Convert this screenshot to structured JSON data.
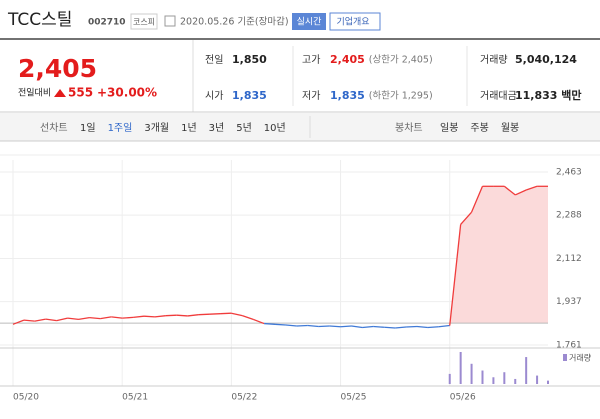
{
  "header": {
    "name": "TCC스틸",
    "code": "002710",
    "market": "코스피",
    "date": "2020.05.26 기준(장마감)",
    "realtime_button": "실시간",
    "company_button": "기업개요"
  },
  "price": {
    "current": "2,405",
    "change_label": "전일대비",
    "change": "555",
    "rate": "+30.00%"
  },
  "summary": [
    [
      {
        "label": "전일",
        "value": "1,850"
      },
      {
        "label": "고가",
        "value": "2,405",
        "note": "(상한가 2,405)"
      },
      {
        "label": "거래량",
        "value": "5,040,124"
      }
    ],
    [
      {
        "label": "시가",
        "value": "1,835"
      },
      {
        "label": "저가",
        "value": "1,835",
        "note": "(하한가 1,295)"
      },
      {
        "label": "거래대금",
        "value": "11,833 백만"
      }
    ]
  ],
  "tabs": {
    "line_label": "선차트",
    "line": [
      "1일",
      "1주일",
      "3개월",
      "1년",
      "3년",
      "5년",
      "10년"
    ],
    "candle_label": "봉차트",
    "candle": [
      "일봉",
      "주봉",
      "월봉"
    ]
  },
  "chart_data": {
    "type": "line",
    "categories": [
      "05/20",
      null,
      null,
      null,
      null,
      null,
      null,
      null,
      null,
      null,
      "05/21",
      null,
      null,
      null,
      null,
      null,
      null,
      null,
      null,
      null,
      "05/22",
      null,
      null,
      null,
      null,
      null,
      null,
      null,
      null,
      null,
      "05/25",
      null,
      null,
      null,
      null,
      null,
      null,
      null,
      null,
      null,
      "05/26",
      null,
      null,
      null,
      null,
      null,
      null,
      null,
      null,
      null
    ],
    "series": [
      {
        "values": [
          1845,
          1862,
          1858,
          1866,
          1860,
          1870,
          1865,
          1872,
          1868,
          1875,
          1870,
          1873,
          1878,
          1875,
          1880,
          1882,
          1879,
          1884,
          1886,
          1888,
          1890,
          1880,
          1865,
          1848,
          1845,
          1842,
          1838,
          1840,
          1836,
          1838,
          1835,
          1838,
          1832,
          1836,
          1833,
          1830,
          1834,
          1836,
          1832,
          1835,
          1840,
          2250,
          2300,
          2405,
          2405,
          2405,
          2370,
          2390,
          2405,
          2405
        ]
      }
    ],
    "base": 1850,
    "up_color": "#f03c3c",
    "down_color": "#3f79d6",
    "ylim": [
      1761,
      2463
    ],
    "yticks": [
      {
        "value": 2463,
        "label": "2,463"
      },
      {
        "value": 2288,
        "label": "2,288"
      },
      {
        "value": 2112,
        "label": "2,112"
      },
      {
        "value": 1937,
        "label": "1,937"
      },
      {
        "value": 1761,
        "label": "1,761"
      }
    ],
    "volume": {
      "name": "거래량",
      "color": "#9b8ad0",
      "values": [
        0,
        0,
        0,
        0,
        0,
        0,
        0,
        0,
        0,
        0,
        0,
        0,
        0,
        0,
        0,
        0,
        0,
        0,
        0,
        0,
        0,
        0,
        0,
        0,
        0,
        0,
        0,
        0,
        0,
        0,
        0,
        0,
        0,
        0,
        0,
        0,
        0,
        0,
        0,
        0,
        30,
        95,
        60,
        40,
        20,
        35,
        15,
        80,
        25,
        10
      ]
    }
  }
}
